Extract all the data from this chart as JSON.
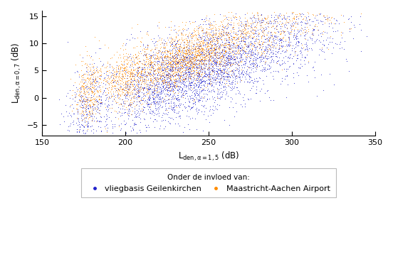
{
  "xlabel": "L_{den,\\alpha=1,5} (dB)",
  "ylabel": "L_{den,\\alpha=0,7} (dB)",
  "xlim": [
    150,
    350
  ],
  "ylim": [
    -7,
    16
  ],
  "xticks": [
    150,
    200,
    250,
    300,
    350
  ],
  "yticks": [
    -5,
    0,
    5,
    10,
    15
  ],
  "blue_color": "#2222CC",
  "orange_color": "#FF8C00",
  "legend_title": "Onder de invloed van:",
  "legend_label_blue": "vliegbasis Geilenkirchen",
  "legend_label_orange": "Maastricht-Aachen Airport",
  "seed": 42,
  "n_blue": 4000,
  "n_orange": 3000
}
